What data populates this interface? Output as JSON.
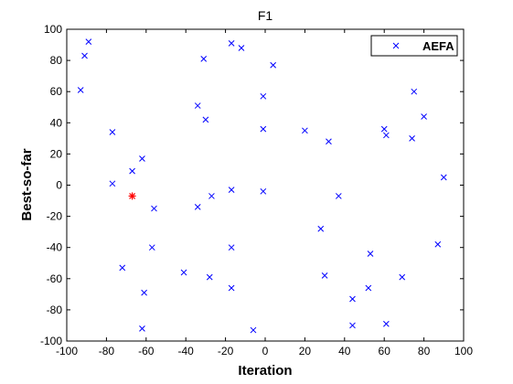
{
  "chart_data": {
    "type": "scatter",
    "title": "F1",
    "xlabel": "Iteration",
    "ylabel": "Best-so-far",
    "xlim": [
      -100,
      100
    ],
    "ylim": [
      -100,
      100
    ],
    "xticks": [
      -100,
      -80,
      -60,
      -40,
      -20,
      0,
      20,
      40,
      60,
      80,
      100
    ],
    "yticks": [
      -100,
      -80,
      -60,
      -40,
      -20,
      0,
      20,
      40,
      60,
      80,
      100
    ],
    "legend": {
      "entries": [
        "AEFA"
      ],
      "position": "top-right"
    },
    "series": [
      {
        "name": "AEFA",
        "marker": "x",
        "color": "#0000ff",
        "points": [
          [
            -89,
            92
          ],
          [
            -91,
            83
          ],
          [
            -93,
            61
          ],
          [
            -77,
            34
          ],
          [
            -77,
            1
          ],
          [
            -67,
            9
          ],
          [
            -62,
            17
          ],
          [
            -56,
            -15
          ],
          [
            -57,
            -40
          ],
          [
            -72,
            -53
          ],
          [
            -61,
            -69
          ],
          [
            -62,
            -92
          ],
          [
            -41,
            -56
          ],
          [
            -34,
            51
          ],
          [
            -31,
            81
          ],
          [
            -30,
            42
          ],
          [
            -34,
            -14
          ],
          [
            -27,
            -7
          ],
          [
            -28,
            -59
          ],
          [
            -17,
            91
          ],
          [
            -12,
            88
          ],
          [
            -17,
            -3
          ],
          [
            -17,
            -40
          ],
          [
            -17,
            -66
          ],
          [
            -6,
            -93
          ],
          [
            -1,
            57
          ],
          [
            4,
            77
          ],
          [
            -1,
            36
          ],
          [
            -1,
            -4
          ],
          [
            20,
            35
          ],
          [
            32,
            28
          ],
          [
            37,
            -7
          ],
          [
            28,
            -28
          ],
          [
            30,
            -58
          ],
          [
            44,
            -73
          ],
          [
            44,
            -90
          ],
          [
            52,
            -66
          ],
          [
            53,
            -44
          ],
          [
            60,
            36
          ],
          [
            61,
            32
          ],
          [
            61,
            -89
          ],
          [
            69,
            -59
          ],
          [
            75,
            60
          ],
          [
            80,
            44
          ],
          [
            74,
            30
          ],
          [
            90,
            5
          ],
          [
            87,
            -38
          ]
        ]
      },
      {
        "marker": "*",
        "color": "#ff0000",
        "points": [
          [
            -67,
            -7
          ]
        ]
      }
    ]
  }
}
